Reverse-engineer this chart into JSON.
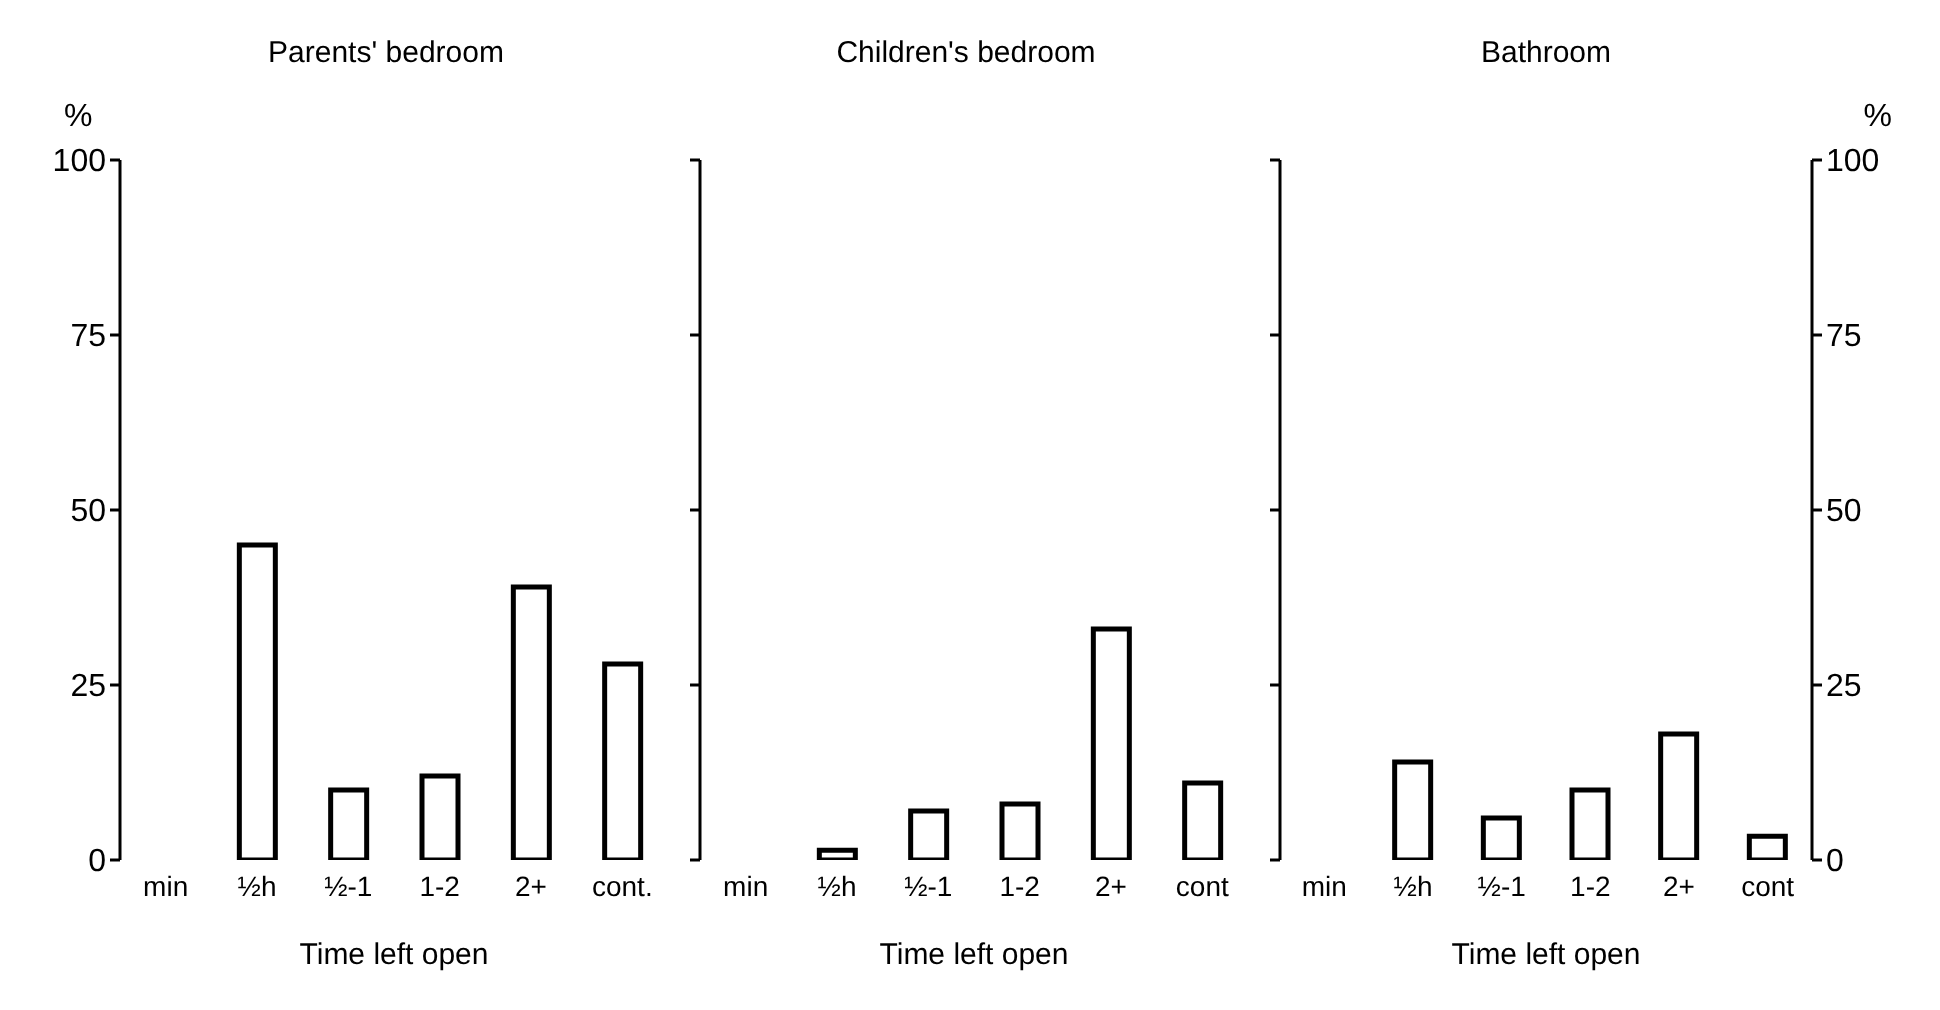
{
  "chart_data": [
    {
      "type": "bar",
      "title": "Parents' bedroom",
      "xlabel": "Time left open",
      "ylabel": "%",
      "categories": [
        "min",
        "½h",
        "½-1",
        "1-2",
        "2+",
        "cont."
      ],
      "series": [
        {
          "color": "#000000",
          "values": [
            0,
            45,
            10,
            12,
            39,
            28
          ]
        }
      ],
      "ylim": [
        0,
        100
      ],
      "yticks": [
        0,
        25,
        50,
        75,
        100
      ]
    },
    {
      "type": "bar",
      "title": "Children's bedroom",
      "xlabel": "Time left open",
      "categories": [
        "min",
        "½h",
        "½-1",
        "1-2",
        "2+",
        "cont"
      ],
      "series": [
        {
          "color": "#000000",
          "values": [
            0,
            1.4,
            7,
            8,
            33,
            11
          ]
        }
      ],
      "ylim": [
        0,
        100
      ],
      "yticks": [
        0,
        25,
        50,
        75,
        100
      ],
      "tick_labels": "x"
    },
    {
      "type": "bar",
      "title": "Bathroom",
      "xlabel": "Time left open",
      "y2label": "%",
      "categories": [
        "min",
        "½h",
        "½-1",
        "1-2",
        "2+",
        "cont"
      ],
      "series": [
        {
          "color": "#000000",
          "values": [
            0,
            14,
            6,
            10,
            18,
            3.4
          ],
          "axis": "y2"
        }
      ],
      "y2lim": [
        0,
        100
      ],
      "y2ticks": [
        0,
        25,
        50,
        75,
        100
      ]
    }
  ]
}
